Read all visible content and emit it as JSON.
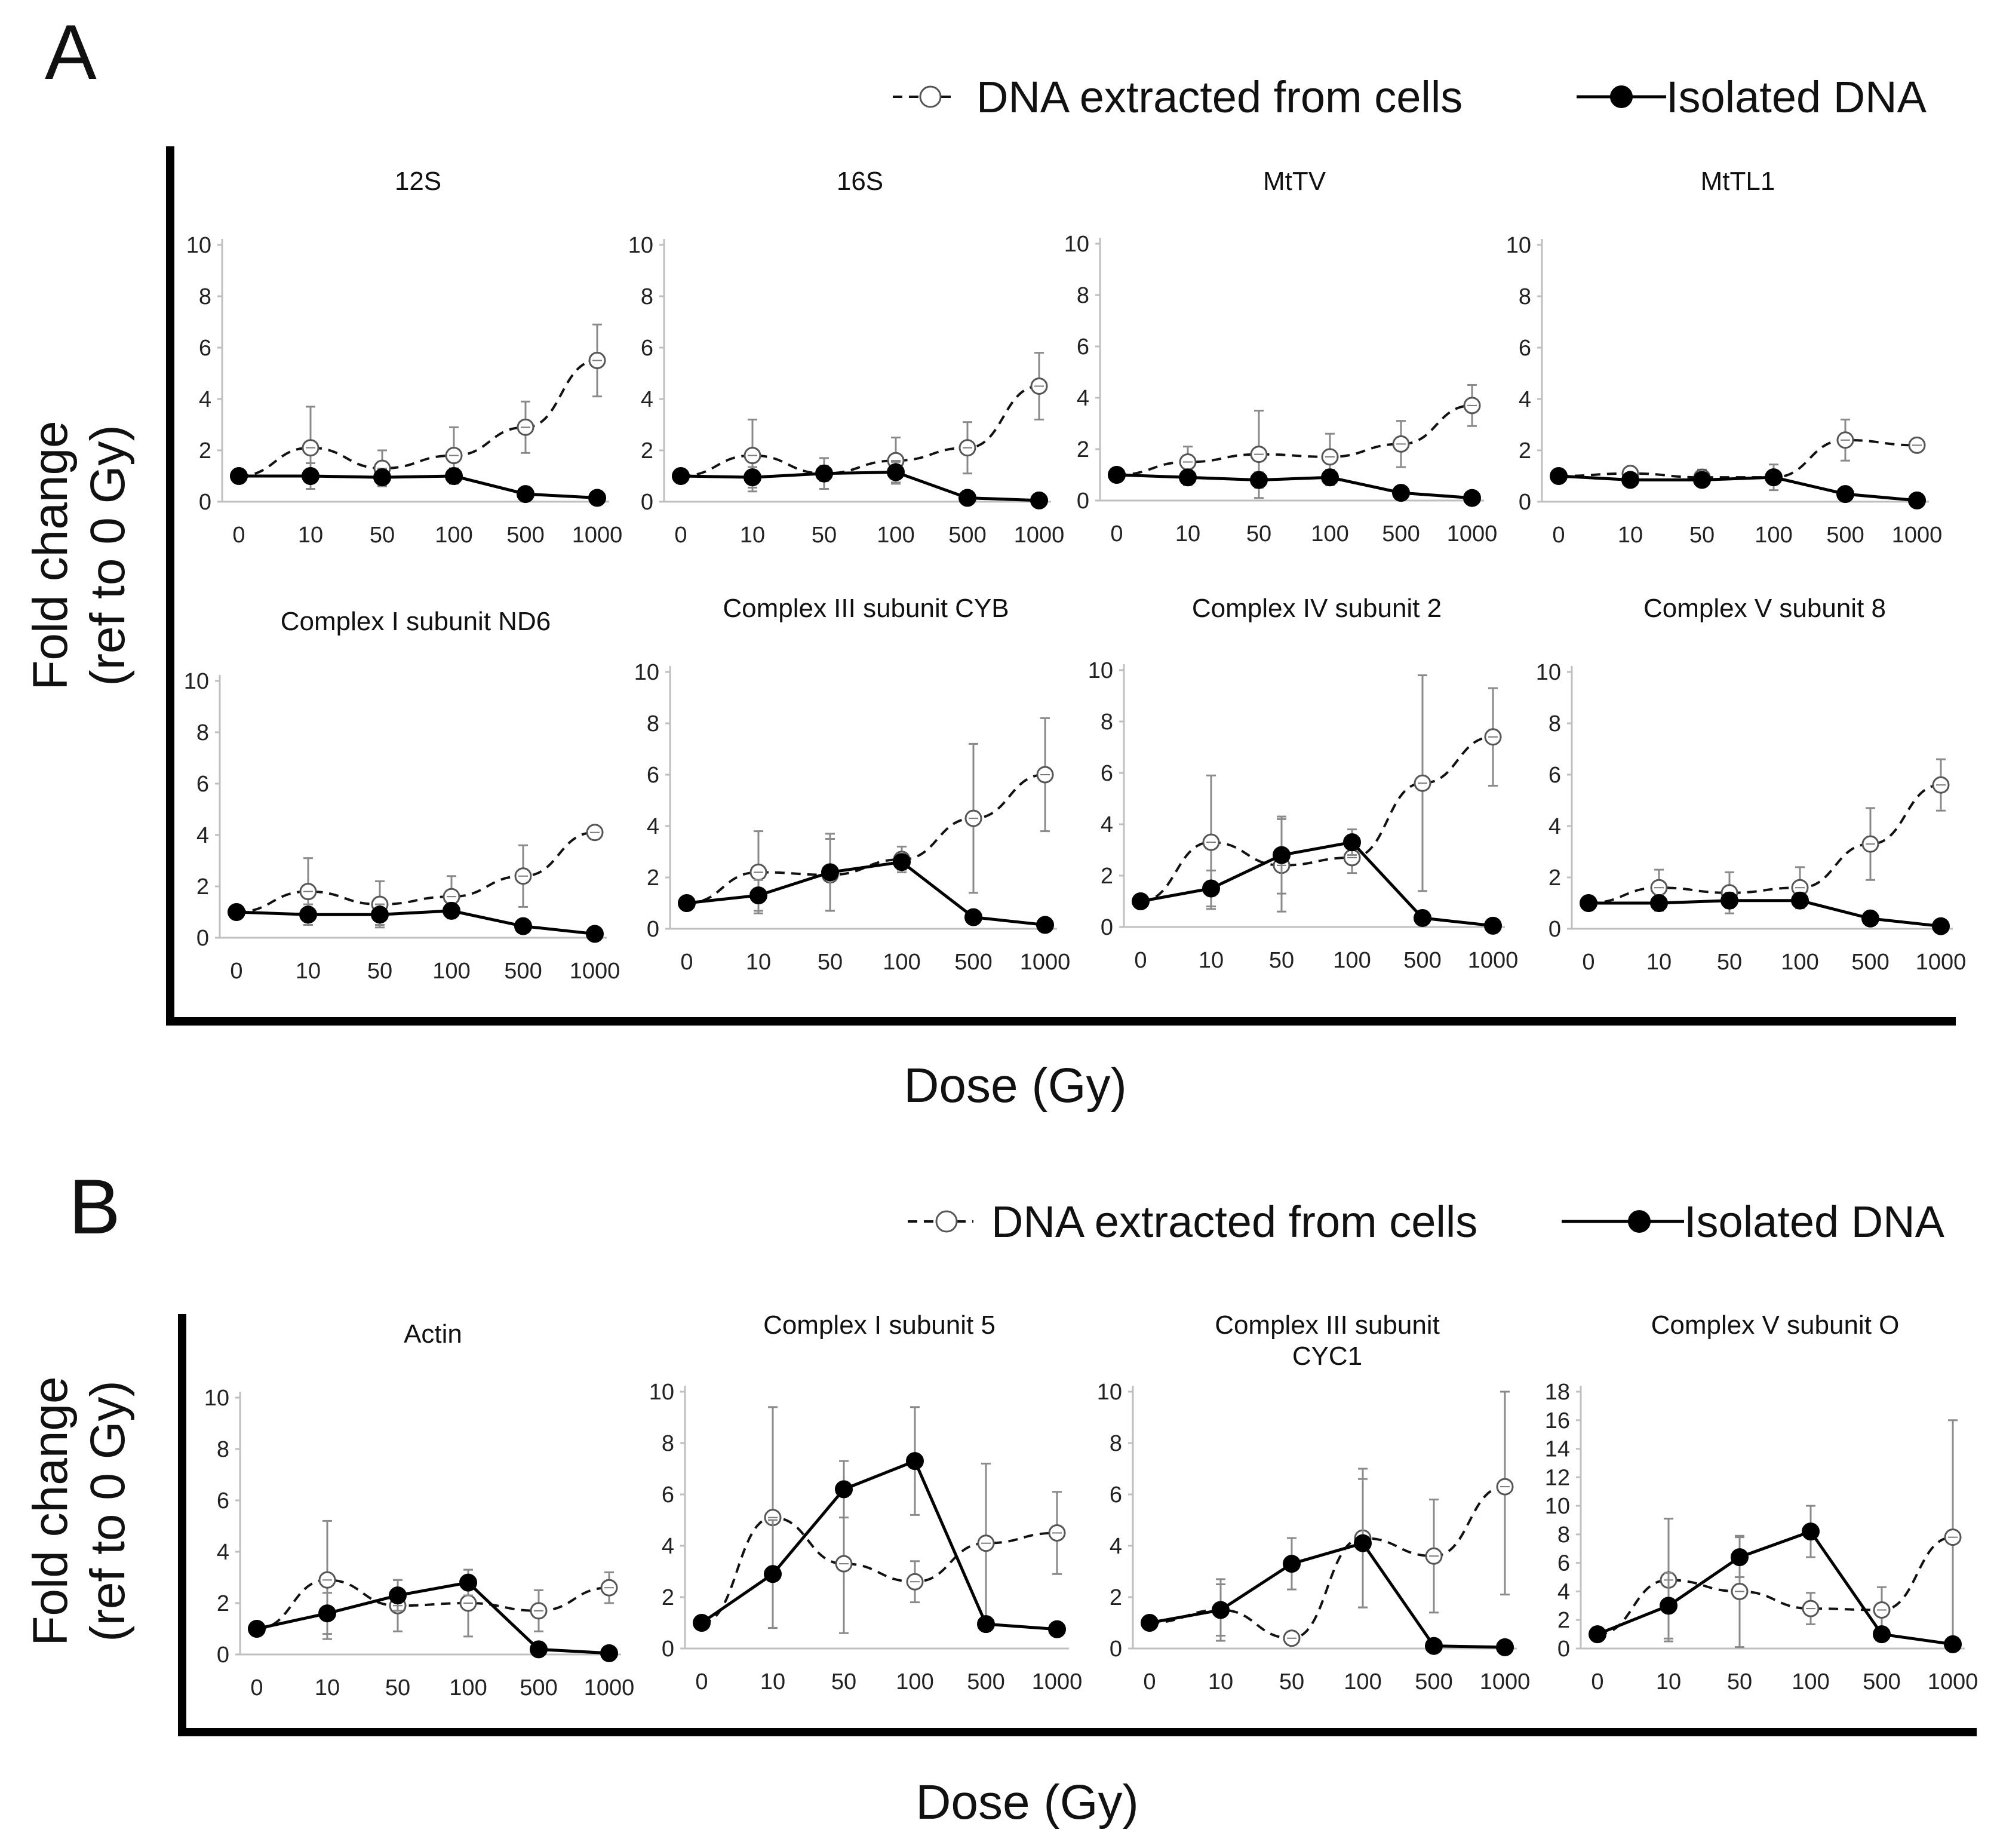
{
  "panel_a": {
    "letter": "A",
    "legend": {
      "cells": "DNA extracted from cells",
      "isolated": "Isolated DNA"
    },
    "ylabel_line1": "Fold change",
    "ylabel_line2": "(ref to 0 Gy)",
    "xlabel": "Dose (Gy)"
  },
  "panel_b": {
    "letter": "B",
    "legend": {
      "cells": "DNA extracted from cells",
      "isolated": "Isolated DNA"
    },
    "ylabel_line1": "Fold change",
    "ylabel_line2": "(ref to 0 Gy)",
    "xlabel": "Dose (Gy)"
  },
  "chart_data": [
    {
      "type": "line",
      "panel": "A",
      "title": [
        "12S"
      ],
      "categories": [
        "0",
        "10",
        "50",
        "100",
        "500",
        "1000"
      ],
      "ylim": [
        0,
        10
      ],
      "yticks": [
        0,
        2,
        4,
        6,
        8,
        10
      ],
      "series": [
        {
          "name": "DNA extracted from cells",
          "style": "dashed-open",
          "values": [
            1.0,
            2.1,
            1.3,
            1.8,
            2.9,
            5.5
          ],
          "error": [
            0,
            1.6,
            0.7,
            1.1,
            1.0,
            1.4
          ]
        },
        {
          "name": "Isolated DNA",
          "style": "solid-filled",
          "values": [
            1.0,
            1.0,
            0.95,
            1.0,
            0.3,
            0.15
          ],
          "error": [
            0,
            0.5,
            0.3,
            0.3,
            0,
            0
          ]
        }
      ]
    },
    {
      "type": "line",
      "panel": "A",
      "title": [
        "16S"
      ],
      "categories": [
        "0",
        "10",
        "50",
        "100",
        "500",
        "1000"
      ],
      "ylim": [
        0,
        10
      ],
      "yticks": [
        0,
        2,
        4,
        6,
        8,
        10
      ],
      "series": [
        {
          "name": "DNA extracted from cells",
          "style": "dashed-open",
          "values": [
            1.0,
            1.8,
            1.1,
            1.6,
            2.1,
            4.5
          ],
          "error": [
            0,
            1.4,
            0.6,
            0.9,
            1.0,
            1.3
          ]
        },
        {
          "name": "Isolated DNA",
          "style": "solid-filled",
          "values": [
            1.0,
            0.95,
            1.1,
            1.15,
            0.15,
            0.05
          ],
          "error": [
            0,
            0.4,
            0.3,
            0.4,
            0,
            0
          ]
        }
      ]
    },
    {
      "type": "line",
      "panel": "A",
      "title": [
        "MtTV"
      ],
      "categories": [
        "0",
        "10",
        "50",
        "100",
        "500",
        "1000"
      ],
      "ylim": [
        0,
        10
      ],
      "yticks": [
        0,
        2,
        4,
        6,
        8,
        10
      ],
      "series": [
        {
          "name": "DNA extracted from cells",
          "style": "dashed-open",
          "values": [
            1.0,
            1.5,
            1.8,
            1.7,
            2.2,
            3.7
          ],
          "error": [
            0,
            0.6,
            1.7,
            0.9,
            0.9,
            0.8
          ]
        },
        {
          "name": "Isolated DNA",
          "style": "solid-filled",
          "values": [
            1.0,
            0.9,
            0.8,
            0.9,
            0.3,
            0.1
          ],
          "error": [
            0,
            0.3,
            0.3,
            0.3,
            0,
            0
          ]
        }
      ]
    },
    {
      "type": "line",
      "panel": "A",
      "title": [
        "MtTL1"
      ],
      "categories": [
        "0",
        "10",
        "50",
        "100",
        "500",
        "1000"
      ],
      "ylim": [
        0,
        10
      ],
      "yticks": [
        0,
        2,
        4,
        6,
        8,
        10
      ],
      "series": [
        {
          "name": "DNA extracted from cells",
          "style": "dashed-open",
          "values": [
            1.0,
            1.1,
            0.95,
            0.95,
            2.4,
            2.2
          ],
          "error": [
            0,
            0.2,
            0.3,
            0.5,
            0.8,
            0
          ]
        },
        {
          "name": "Isolated DNA",
          "style": "solid-filled",
          "values": [
            1.0,
            0.85,
            0.85,
            0.95,
            0.3,
            0.05
          ],
          "error": [
            0,
            0.2,
            0.2,
            0.2,
            0,
            0
          ]
        }
      ]
    },
    {
      "type": "line",
      "panel": "A",
      "title": [
        "Complex I subunit ND6"
      ],
      "categories": [
        "0",
        "10",
        "50",
        "100",
        "500",
        "1000"
      ],
      "ylim": [
        0,
        10
      ],
      "yticks": [
        0,
        2,
        4,
        6,
        8,
        10
      ],
      "series": [
        {
          "name": "DNA extracted from cells",
          "style": "dashed-open",
          "values": [
            1.0,
            1.8,
            1.3,
            1.6,
            2.4,
            4.1
          ],
          "error": [
            0,
            1.3,
            0.9,
            0.8,
            1.2,
            0
          ]
        },
        {
          "name": "Isolated DNA",
          "style": "solid-filled",
          "values": [
            1.0,
            0.9,
            0.9,
            1.05,
            0.45,
            0.15
          ],
          "error": [
            0,
            0.4,
            0.4,
            0.3,
            0,
            0
          ]
        }
      ]
    },
    {
      "type": "line",
      "panel": "A",
      "title": [
        "Complex III subunit CYB"
      ],
      "categories": [
        "0",
        "10",
        "50",
        "100",
        "500",
        "1000"
      ],
      "ylim": [
        0,
        10
      ],
      "yticks": [
        0,
        2,
        4,
        6,
        8,
        10
      ],
      "series": [
        {
          "name": "DNA extracted from cells",
          "style": "dashed-open",
          "values": [
            1.0,
            2.2,
            2.1,
            2.7,
            4.3,
            6.0
          ],
          "error": [
            0,
            1.6,
            1.4,
            0.5,
            2.9,
            2.2
          ]
        },
        {
          "name": "Isolated DNA",
          "style": "solid-filled",
          "values": [
            1.0,
            1.3,
            2.2,
            2.6,
            0.45,
            0.15
          ],
          "error": [
            0,
            0.6,
            1.5,
            0.3,
            0,
            0
          ]
        }
      ]
    },
    {
      "type": "line",
      "panel": "A",
      "title": [
        "Complex IV subunit 2"
      ],
      "categories": [
        "0",
        "10",
        "50",
        "100",
        "500",
        "1000"
      ],
      "ylim": [
        0,
        10
      ],
      "yticks": [
        0,
        2,
        4,
        6,
        8,
        10
      ],
      "series": [
        {
          "name": "DNA extracted from cells",
          "style": "dashed-open",
          "values": [
            1.0,
            3.3,
            2.4,
            2.7,
            5.6,
            7.4
          ],
          "error": [
            0,
            2.6,
            1.8,
            0.6,
            4.2,
            1.9
          ]
        },
        {
          "name": "Isolated DNA",
          "style": "solid-filled",
          "values": [
            1.0,
            1.5,
            2.8,
            3.3,
            0.35,
            0.05
          ],
          "error": [
            0,
            0.7,
            1.5,
            0.5,
            0,
            0
          ]
        }
      ]
    },
    {
      "type": "line",
      "panel": "A",
      "title": [
        "Complex V subunit 8"
      ],
      "categories": [
        "0",
        "10",
        "50",
        "100",
        "500",
        "1000"
      ],
      "ylim": [
        0,
        10
      ],
      "yticks": [
        0,
        2,
        4,
        6,
        8,
        10
      ],
      "series": [
        {
          "name": "DNA extracted from cells",
          "style": "dashed-open",
          "values": [
            1.0,
            1.6,
            1.4,
            1.6,
            3.3,
            5.6
          ],
          "error": [
            0,
            0.7,
            0.8,
            0.8,
            1.4,
            1.0
          ]
        },
        {
          "name": "Isolated DNA",
          "style": "solid-filled",
          "values": [
            1.0,
            1.0,
            1.1,
            1.1,
            0.4,
            0.1
          ],
          "error": [
            0,
            0.3,
            0.3,
            0.3,
            0,
            0
          ]
        }
      ]
    },
    {
      "type": "line",
      "panel": "B",
      "title": [
        "Actin"
      ],
      "categories": [
        "0",
        "10",
        "50",
        "100",
        "500",
        "1000"
      ],
      "ylim": [
        0,
        10
      ],
      "yticks": [
        0,
        2,
        4,
        6,
        8,
        10
      ],
      "series": [
        {
          "name": "DNA extracted from cells",
          "style": "dashed-open",
          "values": [
            1.0,
            2.9,
            1.9,
            2.0,
            1.7,
            2.6
          ],
          "error": [
            0,
            2.3,
            1.0,
            1.3,
            0.8,
            0.6
          ]
        },
        {
          "name": "Isolated DNA",
          "style": "solid-filled",
          "values": [
            1.0,
            1.6,
            2.3,
            2.8,
            0.2,
            0.05
          ],
          "error": [
            0,
            0.8,
            0.6,
            0.5,
            0,
            0
          ]
        }
      ]
    },
    {
      "type": "line",
      "panel": "B",
      "title": [
        "Complex I subunit 5"
      ],
      "categories": [
        "0",
        "10",
        "50",
        "100",
        "500",
        "1000"
      ],
      "ylim": [
        0,
        10
      ],
      "yticks": [
        0,
        2,
        4,
        6,
        8,
        10
      ],
      "series": [
        {
          "name": "DNA extracted from cells",
          "style": "dashed-open",
          "values": [
            1.0,
            5.1,
            3.3,
            2.6,
            4.1,
            4.5
          ],
          "error": [
            0,
            4.3,
            2.7,
            0.8,
            3.1,
            1.6
          ]
        },
        {
          "name": "Isolated DNA",
          "style": "solid-filled",
          "values": [
            1.0,
            2.9,
            6.2,
            7.3,
            0.95,
            0.75
          ],
          "error": [
            0,
            2.1,
            1.1,
            2.1,
            0,
            0
          ]
        }
      ]
    },
    {
      "type": "line",
      "panel": "B",
      "title": [
        "Complex III subunit",
        "CYC1"
      ],
      "categories": [
        "0",
        "10",
        "50",
        "100",
        "500",
        "1000"
      ],
      "ylim": [
        0,
        10
      ],
      "yticks": [
        0,
        2,
        4,
        6,
        8,
        10
      ],
      "series": [
        {
          "name": "DNA extracted from cells",
          "style": "dashed-open",
          "values": [
            1.0,
            1.5,
            0.4,
            4.3,
            3.6,
            6.3
          ],
          "error": [
            0,
            1.2,
            0.2,
            2.7,
            2.2,
            4.2
          ]
        },
        {
          "name": "Isolated DNA",
          "style": "solid-filled",
          "values": [
            1.0,
            1.5,
            3.3,
            4.1,
            0.1,
            0.05
          ],
          "error": [
            0,
            1.0,
            1.0,
            2.5,
            0,
            0
          ]
        }
      ]
    },
    {
      "type": "line",
      "panel": "B",
      "title": [
        "Complex V subunit O"
      ],
      "categories": [
        "0",
        "10",
        "50",
        "100",
        "500",
        "1000"
      ],
      "ylim": [
        0,
        18
      ],
      "yticks": [
        0,
        2,
        4,
        6,
        8,
        10,
        12,
        14,
        16,
        18
      ],
      "series": [
        {
          "name": "DNA extracted from cells",
          "style": "dashed-open",
          "values": [
            1.0,
            4.8,
            4.0,
            2.8,
            2.7,
            7.8
          ],
          "error": [
            0,
            4.3,
            3.9,
            1.1,
            1.6,
            8.2
          ]
        },
        {
          "name": "Isolated DNA",
          "style": "solid-filled",
          "values": [
            1.0,
            3.0,
            6.4,
            8.2,
            1.0,
            0.3
          ],
          "error": [
            0,
            2.3,
            1.4,
            1.8,
            0,
            0
          ]
        }
      ]
    }
  ]
}
